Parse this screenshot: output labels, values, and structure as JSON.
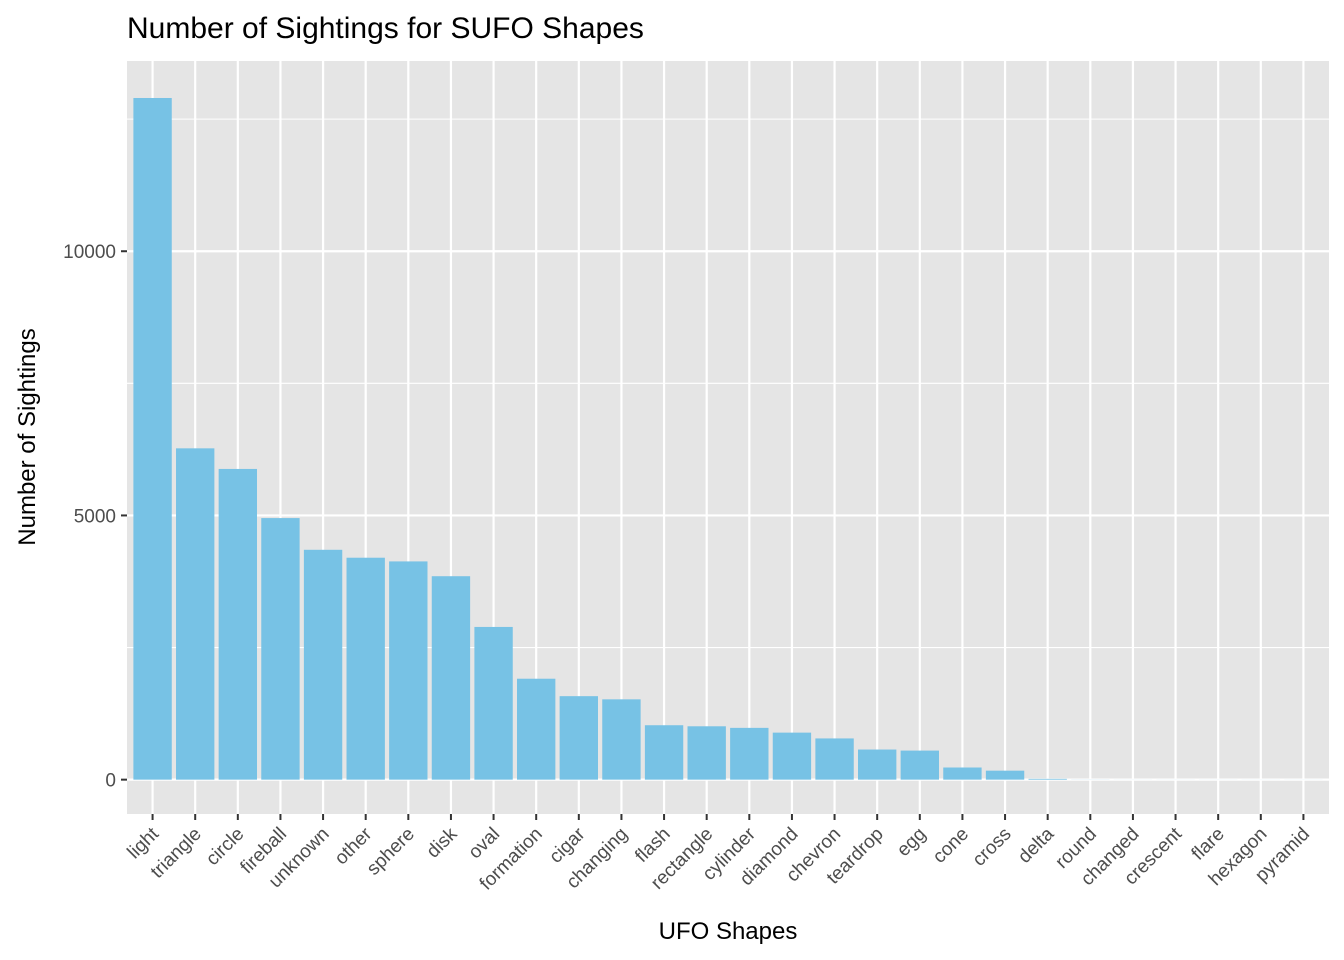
{
  "chart_data": {
    "type": "bar",
    "title": "Number of Sightings for SUFO Shapes",
    "xlabel": "UFO Shapes",
    "ylabel": "Number of Sightings",
    "categories": [
      "light",
      "triangle",
      "circle",
      "fireball",
      "unknown",
      "other",
      "sphere",
      "disk",
      "oval",
      "formation",
      "cigar",
      "changing",
      "flash",
      "rectangle",
      "cylinder",
      "diamond",
      "chevron",
      "teardrop",
      "egg",
      "cone",
      "cross",
      "delta",
      "round",
      "changed",
      "crescent",
      "flare",
      "hexagon",
      "pyramid"
    ],
    "values": [
      12900,
      6270,
      5880,
      4950,
      4350,
      4200,
      4130,
      3850,
      2890,
      1910,
      1580,
      1520,
      1030,
      1010,
      980,
      890,
      780,
      570,
      550,
      230,
      170,
      15,
      2,
      1,
      1,
      1,
      1,
      1
    ],
    "ylim": [
      -650,
      13600
    ],
    "yticks": [
      0,
      5000,
      10000
    ],
    "grid": true,
    "legend": "none",
    "colors": {
      "bar": "#77c2e5",
      "panel": "#e5e5e5",
      "grid": "#ffffff",
      "tick_text": "#4d4d4d",
      "tick_mark": "#333333"
    }
  }
}
